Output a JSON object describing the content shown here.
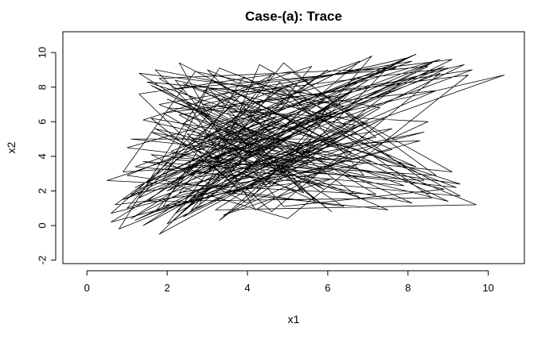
{
  "chart_data": {
    "type": "line",
    "title": "Case-(a): Trace",
    "xlabel": "x1",
    "ylabel": "x2",
    "xlim": [
      -0.6,
      10.9
    ],
    "ylim": [
      -2.2,
      11.2
    ],
    "xticks": [
      0,
      2,
      4,
      6,
      8,
      10
    ],
    "yticks": [
      -2,
      0,
      2,
      4,
      6,
      8,
      10
    ],
    "grid": false,
    "legend": "none",
    "line_color": "#000000",
    "series": [
      {
        "points": [
          [
            1.3,
            2.1
          ],
          [
            8.6,
            9.4
          ],
          [
            1.1,
            0.4
          ],
          [
            4.8,
            5.9
          ],
          [
            0.5,
            2.6
          ],
          [
            7.2,
            1.8
          ],
          [
            2.9,
            7.8
          ],
          [
            9.1,
            9.6
          ],
          [
            3.5,
            3.3
          ],
          [
            1.8,
            -0.5
          ],
          [
            6.9,
            5.9
          ],
          [
            2.2,
            8.4
          ],
          [
            4.9,
            1.1
          ],
          [
            8.9,
            2.1
          ],
          [
            1.4,
            6.1
          ],
          [
            5.6,
            9.2
          ],
          [
            2.6,
            0.9
          ],
          [
            7.6,
            5.6
          ],
          [
            3.1,
            3.9
          ],
          [
            0.9,
            1.5
          ],
          [
            9.6,
            9.0
          ],
          [
            2.3,
            6.4
          ],
          [
            5.2,
            2.6
          ],
          [
            8.1,
            1.3
          ],
          [
            1.6,
            8.1
          ],
          [
            4.3,
            4.8
          ],
          [
            2.1,
            0.2
          ],
          [
            6.8,
            9.5
          ],
          [
            3.6,
            6.9
          ],
          [
            0.6,
            0.7
          ],
          [
            8.4,
            5.4
          ],
          [
            2.8,
            2.8
          ],
          [
            5.9,
            7.2
          ],
          [
            1.2,
            3.4
          ],
          [
            9.3,
            1.7
          ],
          [
            3.9,
            8.6
          ],
          [
            1.9,
            1.1
          ],
          [
            7.1,
            3.7
          ],
          [
            2.5,
            5.3
          ],
          [
            4.6,
            0.8
          ],
          [
            8.8,
            8.8
          ],
          [
            1.5,
            2.5
          ],
          [
            6.2,
            6.5
          ],
          [
            3.3,
            9.1
          ],
          [
            0.8,
            -0.2
          ],
          [
            5.4,
            4.1
          ],
          [
            2.0,
            7.3
          ],
          [
            7.9,
            2.3
          ],
          [
            4.1,
            3.1
          ],
          [
            1.1,
            1.8
          ],
          [
            8.2,
            9.9
          ],
          [
            2.7,
            4.6
          ],
          [
            5.7,
            1.4
          ],
          [
            3.0,
            8.0
          ],
          [
            9.0,
            1.4
          ],
          [
            1.7,
            5.6
          ],
          [
            4.4,
            2.4
          ],
          [
            6.6,
            7.8
          ],
          [
            2.4,
            0.5
          ],
          [
            7.4,
            6.2
          ],
          [
            3.8,
            2.0
          ],
          [
            1.3,
            7.6
          ],
          [
            5.1,
            8.9
          ],
          [
            8.7,
            2.9
          ],
          [
            2.2,
            3.8
          ],
          [
            4.7,
            6.3
          ],
          [
            1.0,
            2.9
          ],
          [
            6.4,
            1.1
          ],
          [
            3.2,
            5.8
          ],
          [
            9.4,
            9.3
          ],
          [
            2.6,
            1.6
          ],
          [
            5.5,
            3.5
          ],
          [
            1.8,
            8.5
          ],
          [
            7.7,
            9.1
          ],
          [
            4.2,
            7.1
          ],
          [
            0.7,
            1.2
          ],
          [
            6.1,
            2.7
          ],
          [
            3.4,
            0.6
          ],
          [
            8.5,
            6.0
          ],
          [
            2.0,
            6.8
          ],
          [
            4.9,
            4.4
          ],
          [
            1.4,
            0.0
          ],
          [
            7.0,
            8.4
          ],
          [
            3.7,
            3.6
          ],
          [
            2.3,
            9.4
          ],
          [
            5.8,
            5.2
          ],
          [
            9.2,
            2.2
          ],
          [
            1.6,
            4.1
          ],
          [
            4.0,
            1.3
          ],
          [
            6.7,
            5.8
          ],
          [
            2.9,
            7.0
          ],
          [
            8.0,
            9.7
          ],
          [
            1.2,
            2.2
          ],
          [
            5.3,
            6.6
          ],
          [
            3.5,
            1.9
          ],
          [
            7.5,
            0.9
          ],
          [
            2.4,
            5.9
          ],
          [
            4.6,
            8.7
          ],
          [
            1.7,
            0.8
          ],
          [
            8.3,
            4.9
          ],
          [
            3.1,
            4.4
          ],
          [
            6.0,
            9.0
          ],
          [
            2.1,
            2.4
          ],
          [
            5.0,
            0.4
          ],
          [
            9.5,
            8.7
          ],
          [
            1.9,
            6.5
          ],
          [
            4.5,
            3.0
          ],
          [
            7.3,
            6.8
          ],
          [
            2.7,
            8.9
          ],
          [
            0.9,
            3.1
          ],
          [
            6.5,
            3.9
          ],
          [
            3.9,
            5.6
          ],
          [
            1.5,
            1.4
          ],
          [
            8.6,
            1.6
          ],
          [
            4.8,
            7.9
          ],
          [
            2.5,
            3.2
          ],
          [
            7.8,
            8.2
          ],
          [
            3.3,
            0.3
          ],
          [
            5.6,
            5.0
          ],
          [
            1.1,
            5.0
          ],
          [
            9.1,
            3.1
          ],
          [
            4.3,
            9.3
          ],
          [
            2.8,
            1.2
          ],
          [
            6.3,
            7.4
          ],
          [
            1.3,
            8.8
          ],
          [
            5.9,
            2.1
          ],
          [
            3.6,
            4.7
          ],
          [
            8.9,
            9.2
          ],
          [
            2.0,
            2.0
          ],
          [
            4.7,
            6.0
          ],
          [
            0.6,
            0.2
          ],
          [
            7.6,
            4.4
          ],
          [
            3.0,
            9.0
          ],
          [
            5.2,
            3.8
          ],
          [
            1.8,
            7.0
          ],
          [
            8.1,
            9.5
          ],
          [
            2.6,
            4.9
          ],
          [
            6.8,
            1.6
          ],
          [
            3.4,
            7.4
          ],
          [
            1.0,
            1.0
          ],
          [
            10.4,
            8.7
          ],
          [
            4.4,
            5.5
          ],
          [
            2.2,
            0.7
          ],
          [
            6.9,
            6.4
          ],
          [
            3.8,
            2.7
          ],
          [
            1.4,
            3.7
          ],
          [
            8.4,
            2.6
          ],
          [
            5.0,
            8.1
          ],
          [
            2.9,
            5.0
          ],
          [
            7.1,
            9.8
          ],
          [
            4.1,
            1.6
          ],
          [
            1.6,
            6.2
          ],
          [
            5.7,
            4.6
          ],
          [
            3.2,
            0.9
          ],
          [
            9.7,
            1.2
          ],
          [
            2.4,
            8.2
          ],
          [
            6.2,
            5.3
          ],
          [
            4.0,
            3.4
          ],
          [
            1.2,
            0.3
          ],
          [
            8.7,
            7.8
          ],
          [
            3.5,
            6.5
          ],
          [
            5.4,
            1.9
          ],
          [
            2.1,
            4.3
          ],
          [
            7.4,
            8.9
          ],
          [
            4.6,
            2.3
          ],
          [
            1.7,
            9.0
          ],
          [
            6.4,
            6.9
          ],
          [
            2.8,
            3.0
          ],
          [
            9.0,
            9.1
          ],
          [
            3.9,
            7.7
          ],
          [
            1.3,
            1.6
          ],
          [
            5.5,
            6.1
          ],
          [
            8.2,
            3.4
          ],
          [
            2.5,
            7.1
          ],
          [
            4.2,
            0.9
          ],
          [
            6.6,
            4.2
          ],
          [
            3.1,
            8.4
          ],
          [
            1.9,
            2.6
          ],
          [
            7.2,
            5.1
          ],
          [
            4.9,
            9.4
          ],
          [
            2.3,
            1.9
          ],
          [
            5.8,
            3.2
          ],
          [
            1.0,
            4.5
          ],
          [
            8.8,
            9.6
          ],
          [
            3.7,
            5.2
          ],
          [
            6.1,
            0.8
          ],
          [
            2.7,
            6.7
          ],
          [
            4.5,
            4.0
          ],
          [
            9.3,
            2.4
          ],
          [
            1.5,
            8.3
          ],
          [
            5.1,
            7.5
          ],
          [
            3.3,
            2.2
          ],
          [
            7.0,
            6.0
          ],
          [
            2.0,
            0.1
          ],
          [
            4.8,
            8.3
          ],
          [
            6.9,
            2.9
          ],
          [
            1.6,
            5.4
          ],
          [
            3.6,
            3.5
          ],
          [
            8.5,
            9.2
          ],
          [
            2.2,
            7.9
          ]
        ]
      }
    ]
  }
}
